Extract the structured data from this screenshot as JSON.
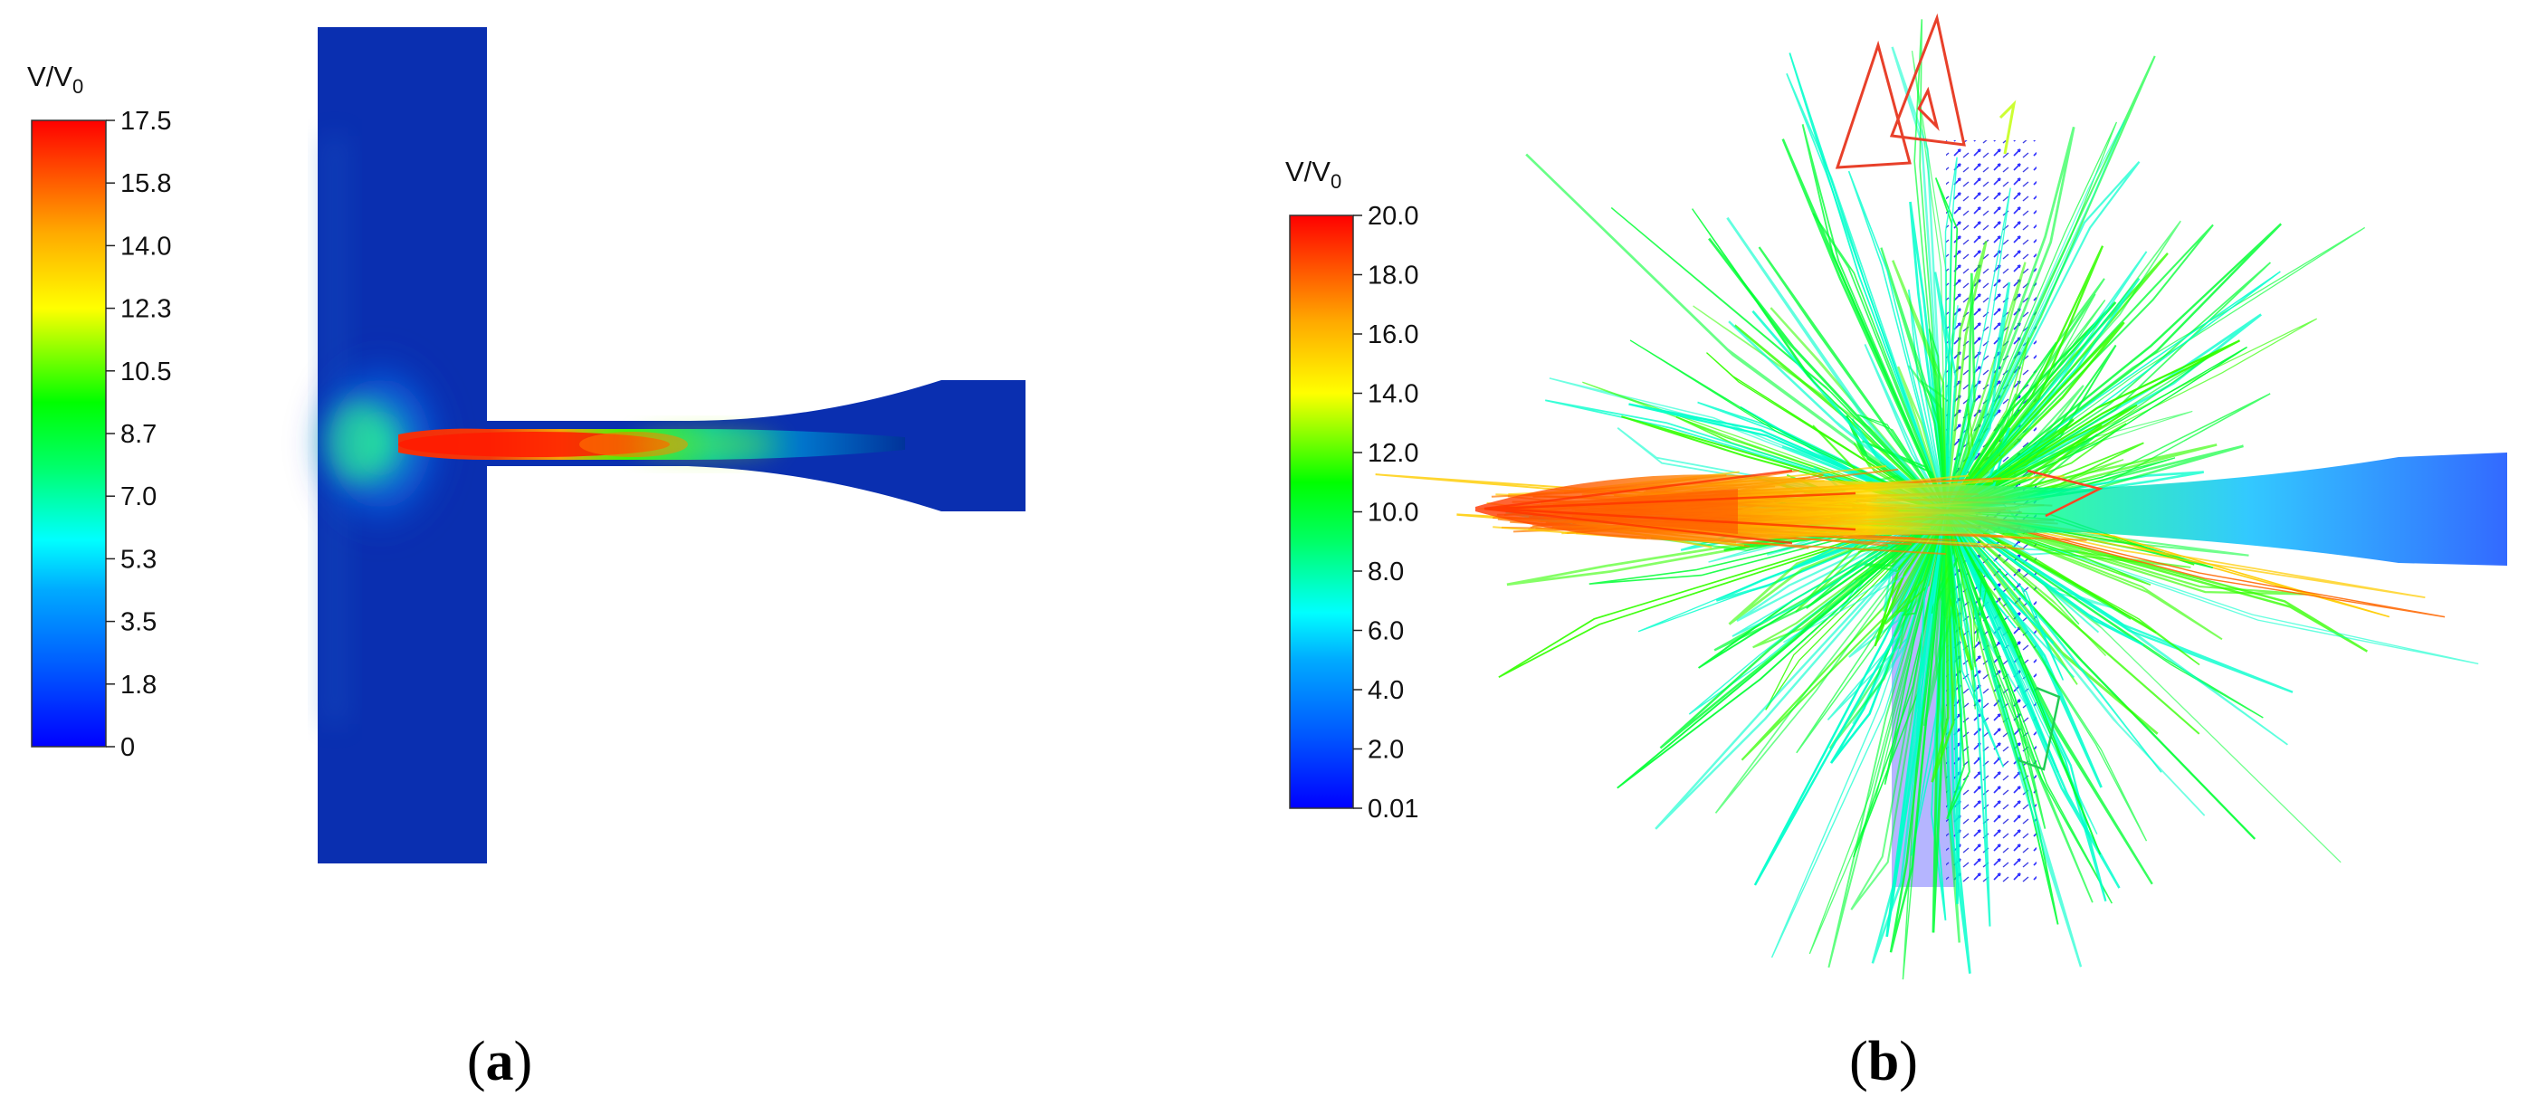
{
  "panels": [
    {
      "id": "a",
      "label": "a",
      "colorbar": {
        "title_main": "V/V",
        "title_sub": "0",
        "ticks": [
          "17.5",
          "15.8",
          "14.0",
          "12.3",
          "10.5",
          "8.7",
          "7.0",
          "5.3",
          "3.5",
          "1.8",
          "0"
        ]
      }
    },
    {
      "id": "b",
      "label": "b",
      "colorbar": {
        "title_main": "V/V",
        "title_sub": "0",
        "ticks": [
          "20.0",
          "18.0",
          "16.0",
          "14.0",
          "12.0",
          "10.0",
          "8.0",
          "6.0",
          "4.0",
          "2.0",
          "0.01"
        ]
      }
    }
  ],
  "colormap": [
    "#0000ff",
    "#0066ff",
    "#00ccff",
    "#00ffcc",
    "#00ff33",
    "#33ff00",
    "#ccff00",
    "#ffcc00",
    "#ff6600",
    "#ff0000"
  ]
}
